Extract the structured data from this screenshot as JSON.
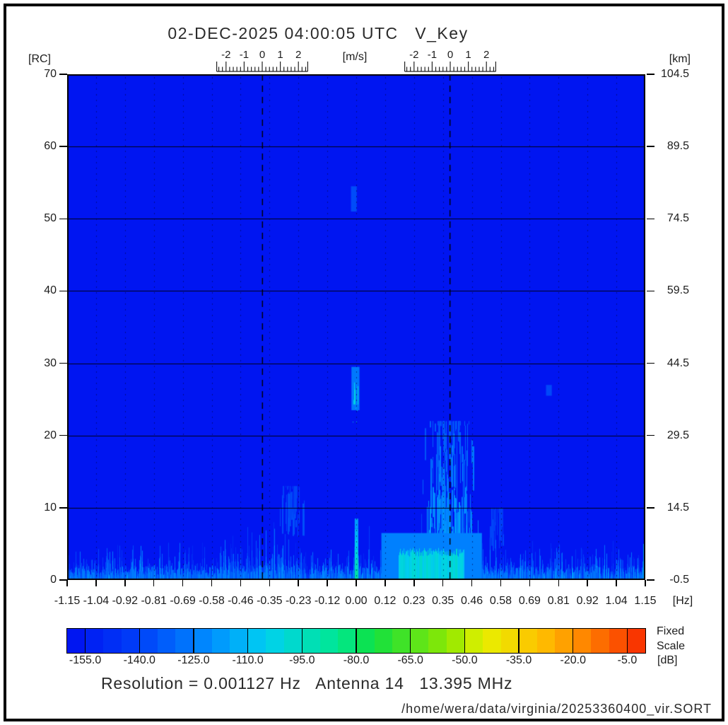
{
  "title": "02-DEC-2025 04:00:05 UTC   V_Key",
  "footer": {
    "resolution_line": "Resolution = 0.001127 Hz   Antenna 14   13.395 MHz",
    "file_path": "/home/wera/data/virginia/20253360400_vir.SORT"
  },
  "chart_data": {
    "type": "heatmap",
    "title": "02-DEC-2025 04:00:05 UTC   V_Key",
    "x_axis": {
      "label": "[Hz]",
      "min": -1.15,
      "max": 1.15,
      "ticks": [
        "-1.15",
        "-1.04",
        "-0.92",
        "-0.81",
        "-0.69",
        "-0.58",
        "-0.46",
        "-0.35",
        "-0.23",
        "-0.12",
        "0.00",
        "0.12",
        "0.23",
        "0.35",
        "0.46",
        "0.58",
        "0.69",
        "0.81",
        "0.92",
        "1.04",
        "1.15"
      ]
    },
    "y_axis_left": {
      "label": "[RC]",
      "min": 0,
      "max": 70,
      "ticks": [
        0,
        10,
        20,
        30,
        40,
        50,
        60,
        70
      ]
    },
    "y_axis_right": {
      "label": "[km]",
      "ticks": [
        "-0.5",
        "14.5",
        "29.5",
        "44.5",
        "59.5",
        "74.5",
        "89.5",
        "104.5"
      ]
    },
    "velocity_axes": {
      "label": "[m/s]",
      "tick_labels": [
        "-2",
        "-1",
        "0",
        "1",
        "2"
      ],
      "tick_values": [
        -2,
        -1,
        0,
        1,
        2
      ],
      "range": [
        -2.5,
        2.5
      ],
      "centers_hz": [
        -0.373,
        0.373
      ]
    },
    "bragg_lines_hz": [
      -0.373,
      0.373
    ],
    "grid": {
      "horizontal_rc": [
        10,
        20,
        30,
        40,
        50,
        60
      ],
      "vertical_dotted_at_ticks": true
    },
    "background_db": -158,
    "noise_seed": 1337,
    "features": [
      {
        "name": "noise-floor-band",
        "hz": [
          -1.15,
          1.15
        ],
        "rc": [
          0,
          7
        ],
        "db": [
          -152,
          -128
        ],
        "style": "noise"
      },
      {
        "name": "negative-bragg-echo",
        "hz": [
          -0.31,
          -0.2
        ],
        "rc": [
          6,
          13
        ],
        "db": [
          -145,
          -134
        ],
        "style": "streaks",
        "count": 38
      },
      {
        "name": "positive-bragg-echo",
        "hz": [
          0.26,
          0.48
        ],
        "rc": [
          4,
          22
        ],
        "db": [
          -142,
          -114
        ],
        "style": "streaks",
        "count": 210
      },
      {
        "name": "positive-bragg-echo-outer",
        "hz": [
          0.52,
          0.6
        ],
        "rc": [
          4,
          10
        ],
        "db": [
          -147,
          -137
        ],
        "style": "streaks",
        "count": 26
      },
      {
        "name": "bottom-halo",
        "hz": [
          0.1,
          0.5
        ],
        "rc": [
          0,
          6.5
        ],
        "db": [
          -126,
          -122
        ],
        "style": "fill"
      },
      {
        "name": "bottom-bright-patch",
        "hz": [
          0.17,
          0.43
        ],
        "rc": [
          0,
          4.5
        ],
        "db": [
          -108,
          -96
        ],
        "style": "patch"
      },
      {
        "name": "dc-spike-halo",
        "hz": [
          -0.019,
          0.013
        ],
        "rc": [
          23.5,
          29.5
        ],
        "db": [
          -127,
          -125
        ],
        "style": "fill"
      },
      {
        "name": "dc-spike-core",
        "hz": [
          -0.012,
          0.007
        ],
        "rc": [
          24.3,
          28.8
        ],
        "db": [
          -104,
          -98
        ],
        "style": "patch"
      },
      {
        "name": "dc-upper-faint-echo",
        "hz": [
          -0.021,
          0.002
        ],
        "rc": [
          51,
          54.5
        ],
        "db": [
          -139,
          -135
        ],
        "style": "fill"
      },
      {
        "name": "dc-bottom-stripe",
        "hz": [
          -0.006,
          0.008
        ],
        "rc": [
          0,
          8.5
        ],
        "db": [
          -117,
          -90
        ],
        "style": "vgrad"
      },
      {
        "name": "right-edge-tint",
        "hz": [
          1.142,
          1.15
        ],
        "rc": [
          0,
          5
        ],
        "db": [
          -114,
          -110
        ],
        "style": "fill"
      },
      {
        "name": "faint-speck",
        "hz": [
          0.755,
          0.778
        ],
        "rc": [
          25.5,
          27
        ],
        "db": [
          -139,
          -137
        ],
        "style": "fill"
      }
    ],
    "colorbar": {
      "min_db": -160,
      "max_db": 0,
      "cells": 32,
      "tick_values": [
        -155,
        -140,
        -125,
        -110,
        -95,
        -80,
        -65,
        -50,
        -35,
        -20,
        -5
      ],
      "tick_labels": [
        "-155.0",
        "-140.0",
        "-125.0",
        "-110.0",
        "-95.0",
        "-80.0",
        "-65.0",
        "-50.0",
        "-35.0",
        "-20.0",
        "-5.0"
      ],
      "units_label": "[dB]",
      "scale_note_line1": "Fixed",
      "scale_note_line2": "Scale"
    }
  }
}
